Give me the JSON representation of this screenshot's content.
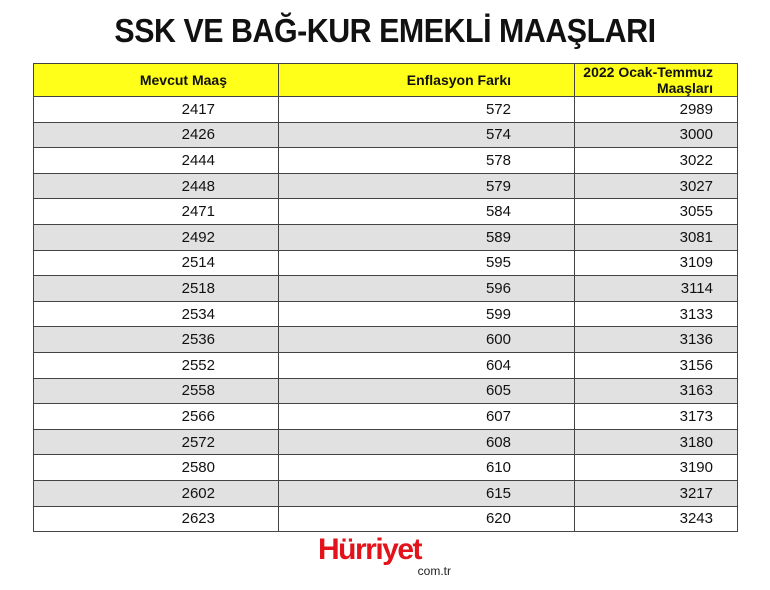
{
  "title": "SSK VE BAĞ-KUR EMEKLİ MAAŞLARI",
  "table": {
    "headers": [
      "Mevcut Maaş",
      "Enflasyon Farkı",
      "2022 Ocak-Temmuz Maaşları"
    ],
    "rows": [
      [
        "2417",
        "572",
        "2989"
      ],
      [
        "2426",
        "574",
        "3000"
      ],
      [
        "2444",
        "578",
        "3022"
      ],
      [
        "2448",
        "579",
        "3027"
      ],
      [
        "2471",
        "584",
        "3055"
      ],
      [
        "2492",
        "589",
        "3081"
      ],
      [
        "2514",
        "595",
        "3109"
      ],
      [
        "2518",
        "596",
        "3114"
      ],
      [
        "2534",
        "599",
        "3133"
      ],
      [
        "2536",
        "600",
        "3136"
      ],
      [
        "2552",
        "604",
        "3156"
      ],
      [
        "2558",
        "605",
        "3163"
      ],
      [
        "2566",
        "607",
        "3173"
      ],
      [
        "2572",
        "608",
        "3180"
      ],
      [
        "2580",
        "610",
        "3190"
      ],
      [
        "2602",
        "615",
        "3217"
      ],
      [
        "2623",
        "620",
        "3243"
      ]
    ]
  },
  "logo": {
    "brand": "Hürriyet",
    "domain": "com.tr",
    "color": "#e3131b"
  },
  "colors": {
    "header_bg": "#ffff1a",
    "alt_row_bg": "#e1e1e1"
  }
}
